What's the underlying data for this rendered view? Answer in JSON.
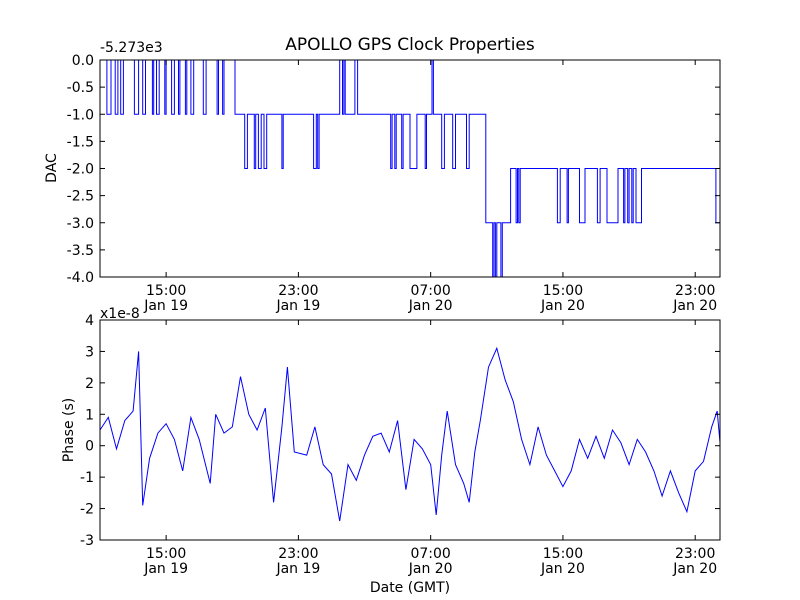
{
  "figure": {
    "title": "APOLLO GPS Clock Properties"
  },
  "chart_data": [
    {
      "type": "line",
      "ylabel": "DAC",
      "offset_text": "-5.273e3",
      "xlim": [
        "2013-01-19 11:00",
        "2013-01-21 00:30"
      ],
      "ylim": [
        -4.0,
        0.0
      ],
      "x_ticks": [
        {
          "value": "2013-01-19 15:00",
          "label": [
            "15:00",
            "Jan 19"
          ]
        },
        {
          "value": "2013-01-19 23:00",
          "label": [
            "23:00",
            "Jan 19"
          ]
        },
        {
          "value": "2013-01-20 07:00",
          "label": [
            "07:00",
            "Jan 20"
          ]
        },
        {
          "value": "2013-01-20 15:00",
          "label": [
            "15:00",
            "Jan 20"
          ]
        },
        {
          "value": "2013-01-20 23:00",
          "label": [
            "23:00",
            "Jan 20"
          ]
        }
      ],
      "y_ticks": [
        {
          "value": 0.0,
          "label": "0.0"
        },
        {
          "value": -0.5,
          "label": "-0.5"
        },
        {
          "value": -1.0,
          "label": "-1.0"
        },
        {
          "value": -1.5,
          "label": "-1.5"
        },
        {
          "value": -2.0,
          "label": "-2.0"
        },
        {
          "value": -2.5,
          "label": "-2.5"
        },
        {
          "value": -3.0,
          "label": "-3.0"
        },
        {
          "value": -3.5,
          "label": "-3.5"
        },
        {
          "value": -4.0,
          "label": "-4.0"
        }
      ],
      "series": [
        {
          "color": "#0000ff",
          "step": true,
          "points": [
            [
              "2013-01-19 11:00",
              0
            ],
            [
              "2013-01-19 11:25",
              -1
            ],
            [
              "2013-01-19 11:40",
              0
            ],
            [
              "2013-01-19 11:55",
              -1
            ],
            [
              "2013-01-19 12:05",
              0
            ],
            [
              "2013-01-19 12:15",
              -1
            ],
            [
              "2013-01-19 12:25",
              0
            ],
            [
              "2013-01-19 13:05",
              -1
            ],
            [
              "2013-01-19 13:20",
              0
            ],
            [
              "2013-01-19 13:35",
              -1
            ],
            [
              "2013-01-19 13:45",
              0
            ],
            [
              "2013-01-19 14:10",
              -1
            ],
            [
              "2013-01-19 14:15",
              0
            ],
            [
              "2013-01-19 14:25",
              -1
            ],
            [
              "2013-01-19 14:35",
              0
            ],
            [
              "2013-01-19 14:55",
              -1
            ],
            [
              "2013-01-19 15:00",
              0
            ],
            [
              "2013-01-19 15:20",
              -1
            ],
            [
              "2013-01-19 15:30",
              0
            ],
            [
              "2013-01-19 15:45",
              -1
            ],
            [
              "2013-01-19 15:50",
              0
            ],
            [
              "2013-01-19 16:10",
              -1
            ],
            [
              "2013-01-19 16:15",
              0
            ],
            [
              "2013-01-19 16:30",
              -1
            ],
            [
              "2013-01-19 16:40",
              0
            ],
            [
              "2013-01-19 17:15",
              -1
            ],
            [
              "2013-01-19 17:25",
              0
            ],
            [
              "2013-01-19 18:05",
              -1
            ],
            [
              "2013-01-19 18:10",
              0
            ],
            [
              "2013-01-19 18:25",
              -1
            ],
            [
              "2013-01-19 18:30",
              0
            ],
            [
              "2013-01-19 19:10",
              -1
            ],
            [
              "2013-01-19 19:45",
              -2
            ],
            [
              "2013-01-19 19:55",
              -1
            ],
            [
              "2013-01-19 20:20",
              -2
            ],
            [
              "2013-01-19 20:25",
              -1
            ],
            [
              "2013-01-19 20:35",
              -2
            ],
            [
              "2013-01-19 20:45",
              -1
            ],
            [
              "2013-01-19 20:55",
              -2
            ],
            [
              "2013-01-19 21:05",
              -1
            ],
            [
              "2013-01-19 22:00",
              -2
            ],
            [
              "2013-01-19 22:05",
              -1
            ],
            [
              "2013-01-19 23:55",
              -2
            ],
            [
              "2013-01-20 00:05",
              -1
            ],
            [
              "2013-01-20 00:10",
              -2
            ],
            [
              "2013-01-20 00:15",
              -1
            ],
            [
              "2013-01-20 01:30",
              0
            ],
            [
              "2013-01-20 01:40",
              -1
            ],
            [
              "2013-01-20 01:45",
              0
            ],
            [
              "2013-01-20 01:50",
              -1
            ],
            [
              "2013-01-20 02:25",
              0
            ],
            [
              "2013-01-20 02:35",
              -1
            ],
            [
              "2013-01-20 04:35",
              -2
            ],
            [
              "2013-01-20 04:40",
              -1
            ],
            [
              "2013-01-20 04:50",
              -2
            ],
            [
              "2013-01-20 04:55",
              -1
            ],
            [
              "2013-01-20 05:15",
              -2
            ],
            [
              "2013-01-20 05:20",
              -1
            ],
            [
              "2013-01-20 05:45",
              -2
            ],
            [
              "2013-01-20 06:10",
              -1
            ],
            [
              "2013-01-20 06:40",
              -2
            ],
            [
              "2013-01-20 06:45",
              -1
            ],
            [
              "2013-01-20 07:05",
              0
            ],
            [
              "2013-01-20 07:10",
              -1
            ],
            [
              "2013-01-20 07:40",
              -2
            ],
            [
              "2013-01-20 07:50",
              -1
            ],
            [
              "2013-01-20 08:20",
              -2
            ],
            [
              "2013-01-20 08:30",
              -1
            ],
            [
              "2013-01-20 09:10",
              -2
            ],
            [
              "2013-01-20 09:20",
              -1
            ],
            [
              "2013-01-20 10:20",
              -3
            ],
            [
              "2013-01-20 10:45",
              -4
            ],
            [
              "2013-01-20 10:50",
              -3
            ],
            [
              "2013-01-20 10:55",
              -4
            ],
            [
              "2013-01-20 11:00",
              -3
            ],
            [
              "2013-01-20 11:15",
              -4
            ],
            [
              "2013-01-20 11:20",
              -3
            ],
            [
              "2013-01-20 11:50",
              -2
            ],
            [
              "2013-01-20 12:10",
              -3
            ],
            [
              "2013-01-20 12:15",
              -2
            ],
            [
              "2013-01-20 12:20",
              -3
            ],
            [
              "2013-01-20 12:25",
              -2
            ],
            [
              "2013-01-20 14:40",
              -3
            ],
            [
              "2013-01-20 14:50",
              -2
            ],
            [
              "2013-01-20 15:15",
              -3
            ],
            [
              "2013-01-20 15:20",
              -2
            ],
            [
              "2013-01-20 16:00",
              -3
            ],
            [
              "2013-01-20 16:20",
              -2
            ],
            [
              "2013-01-20 17:05",
              -3
            ],
            [
              "2013-01-20 17:15",
              -2
            ],
            [
              "2013-01-20 17:40",
              -3
            ],
            [
              "2013-01-20 18:20",
              -2
            ],
            [
              "2013-01-20 18:40",
              -3
            ],
            [
              "2013-01-20 18:45",
              -2
            ],
            [
              "2013-01-20 18:55",
              -3
            ],
            [
              "2013-01-20 19:00",
              -2
            ],
            [
              "2013-01-20 19:10",
              -3
            ],
            [
              "2013-01-20 19:15",
              -2
            ],
            [
              "2013-01-20 19:25",
              -3
            ],
            [
              "2013-01-20 19:45",
              -2
            ],
            [
              "2013-01-20 24:15",
              -3
            ]
          ]
        }
      ]
    },
    {
      "type": "line",
      "xlabel": "Date (GMT)",
      "ylabel": "Phase (s)",
      "offset_text": "x1e-8",
      "xlim": [
        "2013-01-19 11:00",
        "2013-01-21 00:30"
      ],
      "ylim": [
        -3,
        4
      ],
      "x_ticks": [
        {
          "value": "2013-01-19 15:00",
          "label": [
            "15:00",
            "Jan 19"
          ]
        },
        {
          "value": "2013-01-19 23:00",
          "label": [
            "23:00",
            "Jan 19"
          ]
        },
        {
          "value": "2013-01-20 07:00",
          "label": [
            "07:00",
            "Jan 20"
          ]
        },
        {
          "value": "2013-01-20 15:00",
          "label": [
            "15:00",
            "Jan 20"
          ]
        },
        {
          "value": "2013-01-20 23:00",
          "label": [
            "23:00",
            "Jan 20"
          ]
        }
      ],
      "y_ticks": [
        {
          "value": 4,
          "label": "4"
        },
        {
          "value": 3,
          "label": "3"
        },
        {
          "value": 2,
          "label": "2"
        },
        {
          "value": 1,
          "label": "1"
        },
        {
          "value": 0,
          "label": "0"
        },
        {
          "value": -1,
          "label": "-1"
        },
        {
          "value": -2,
          "label": "-2"
        },
        {
          "value": -3,
          "label": "-3"
        }
      ],
      "series": [
        {
          "color": "#0000ff",
          "step": false,
          "points": [
            [
              "2013-01-19 11:00",
              0.5
            ],
            [
              "2013-01-19 11:30",
              0.9
            ],
            [
              "2013-01-19 12:00",
              -0.1
            ],
            [
              "2013-01-19 12:30",
              0.8
            ],
            [
              "2013-01-19 13:00",
              1.1
            ],
            [
              "2013-01-19 13:20",
              3.0
            ],
            [
              "2013-01-19 13:35",
              -1.9
            ],
            [
              "2013-01-19 14:00",
              -0.4
            ],
            [
              "2013-01-19 14:30",
              0.4
            ],
            [
              "2013-01-19 15:00",
              0.7
            ],
            [
              "2013-01-19 15:30",
              0.2
            ],
            [
              "2013-01-19 16:00",
              -0.8
            ],
            [
              "2013-01-19 16:30",
              0.9
            ],
            [
              "2013-01-19 17:00",
              0.2
            ],
            [
              "2013-01-19 17:40",
              -1.2
            ],
            [
              "2013-01-19 18:00",
              1.0
            ],
            [
              "2013-01-19 18:30",
              0.4
            ],
            [
              "2013-01-19 19:00",
              0.6
            ],
            [
              "2013-01-19 19:30",
              2.2
            ],
            [
              "2013-01-19 20:00",
              1.0
            ],
            [
              "2013-01-19 20:30",
              0.5
            ],
            [
              "2013-01-19 21:00",
              1.2
            ],
            [
              "2013-01-19 21:30",
              -1.8
            ],
            [
              "2013-01-19 22:00",
              0.6
            ],
            [
              "2013-01-19 22:20",
              2.5
            ],
            [
              "2013-01-19 22:45",
              -0.2
            ],
            [
              "2013-01-19 23:30",
              -0.3
            ],
            [
              "2013-01-20 00:00",
              0.6
            ],
            [
              "2013-01-20 00:30",
              -0.6
            ],
            [
              "2013-01-20 01:00",
              -0.9
            ],
            [
              "2013-01-20 01:30",
              -2.4
            ],
            [
              "2013-01-20 02:00",
              -0.6
            ],
            [
              "2013-01-20 02:30",
              -1.1
            ],
            [
              "2013-01-20 03:00",
              -0.3
            ],
            [
              "2013-01-20 03:30",
              0.3
            ],
            [
              "2013-01-20 04:00",
              0.4
            ],
            [
              "2013-01-20 04:30",
              -0.2
            ],
            [
              "2013-01-20 05:00",
              0.8
            ],
            [
              "2013-01-20 05:30",
              -1.4
            ],
            [
              "2013-01-20 06:00",
              0.2
            ],
            [
              "2013-01-20 06:30",
              -0.1
            ],
            [
              "2013-01-20 07:00",
              -0.6
            ],
            [
              "2013-01-20 07:20",
              -2.2
            ],
            [
              "2013-01-20 07:40",
              -0.3
            ],
            [
              "2013-01-20 08:00",
              1.1
            ],
            [
              "2013-01-20 08:30",
              -0.6
            ],
            [
              "2013-01-20 09:00",
              -1.2
            ],
            [
              "2013-01-20 09:20",
              -1.8
            ],
            [
              "2013-01-20 09:40",
              -0.2
            ],
            [
              "2013-01-20 10:00",
              0.8
            ],
            [
              "2013-01-20 10:30",
              2.5
            ],
            [
              "2013-01-20 11:00",
              3.1
            ],
            [
              "2013-01-20 11:30",
              2.1
            ],
            [
              "2013-01-20 12:00",
              1.4
            ],
            [
              "2013-01-20 12:30",
              0.2
            ],
            [
              "2013-01-20 13:00",
              -0.6
            ],
            [
              "2013-01-20 13:30",
              0.6
            ],
            [
              "2013-01-20 14:00",
              -0.3
            ],
            [
              "2013-01-20 14:30",
              -0.8
            ],
            [
              "2013-01-20 15:00",
              -1.3
            ],
            [
              "2013-01-20 15:30",
              -0.8
            ],
            [
              "2013-01-20 16:00",
              0.2
            ],
            [
              "2013-01-20 16:30",
              -0.4
            ],
            [
              "2013-01-20 17:00",
              0.3
            ],
            [
              "2013-01-20 17:30",
              -0.4
            ],
            [
              "2013-01-20 18:00",
              0.5
            ],
            [
              "2013-01-20 18:30",
              0.1
            ],
            [
              "2013-01-20 19:00",
              -0.6
            ],
            [
              "2013-01-20 19:30",
              0.2
            ],
            [
              "2013-01-20 20:00",
              -0.2
            ],
            [
              "2013-01-20 20:30",
              -0.8
            ],
            [
              "2013-01-20 21:00",
              -1.6
            ],
            [
              "2013-01-20 21:30",
              -0.8
            ],
            [
              "2013-01-20 22:00",
              -1.5
            ],
            [
              "2013-01-20 22:30",
              -2.1
            ],
            [
              "2013-01-20 23:00",
              -0.8
            ],
            [
              "2013-01-20 23:30",
              -0.5
            ],
            [
              "2013-01-21 00:00",
              0.6
            ],
            [
              "2013-01-21 00:20",
              1.1
            ],
            [
              "2013-01-21 00:30",
              0.1
            ]
          ]
        }
      ]
    }
  ]
}
